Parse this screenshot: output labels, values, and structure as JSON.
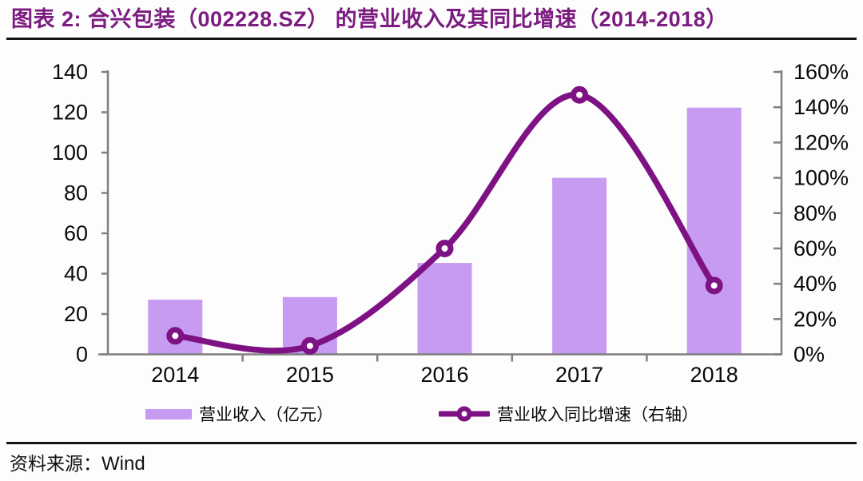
{
  "header": {
    "title": "图表 2: 合兴包装（002228.SZ） 的营业收入及其同比增速（2014-2018）"
  },
  "legend": [
    {
      "icon": "bar-swatch-icon",
      "label": "营业收入（亿元）"
    },
    {
      "icon": "line-marker-icon",
      "label": "营业收入同比增速（右轴）"
    }
  ],
  "footer": {
    "source_label": "资料来源：",
    "source_value": "Wind"
  },
  "colors": {
    "bar_fill": "#C79BF2",
    "line": "#7E1284",
    "title": "#7C1C80",
    "axis": "#7F7F7F",
    "text": "#0A0A0A"
  },
  "chart_data": {
    "type": "bar+line combo",
    "categories": [
      "2014",
      "2015",
      "2016",
      "2017",
      "2018"
    ],
    "series": [
      {
        "name": "营业收入（亿元）",
        "type": "bar",
        "axis": "left",
        "values": [
          27.1,
          28.4,
          45.3,
          87.5,
          122.3
        ]
      },
      {
        "name": "营业收入同比增速（右轴）",
        "type": "line",
        "axis": "right",
        "values_pct": [
          10.5,
          4.8,
          60,
          147,
          39
        ]
      }
    ],
    "left_axis": {
      "min": 0,
      "max": 140,
      "step": 20,
      "tick_labels": [
        "0",
        "20",
        "40",
        "60",
        "80",
        "100",
        "120",
        "140"
      ]
    },
    "right_axis": {
      "min": 0,
      "max": 160,
      "step": 20,
      "unit": "%",
      "tick_labels": [
        "0%",
        "20%",
        "40%",
        "60%",
        "80%",
        "100%",
        "120%",
        "140%",
        "160%"
      ]
    },
    "grid": "off",
    "legend_position": "bottom",
    "line_style": "smooth spline with open circle markers"
  }
}
